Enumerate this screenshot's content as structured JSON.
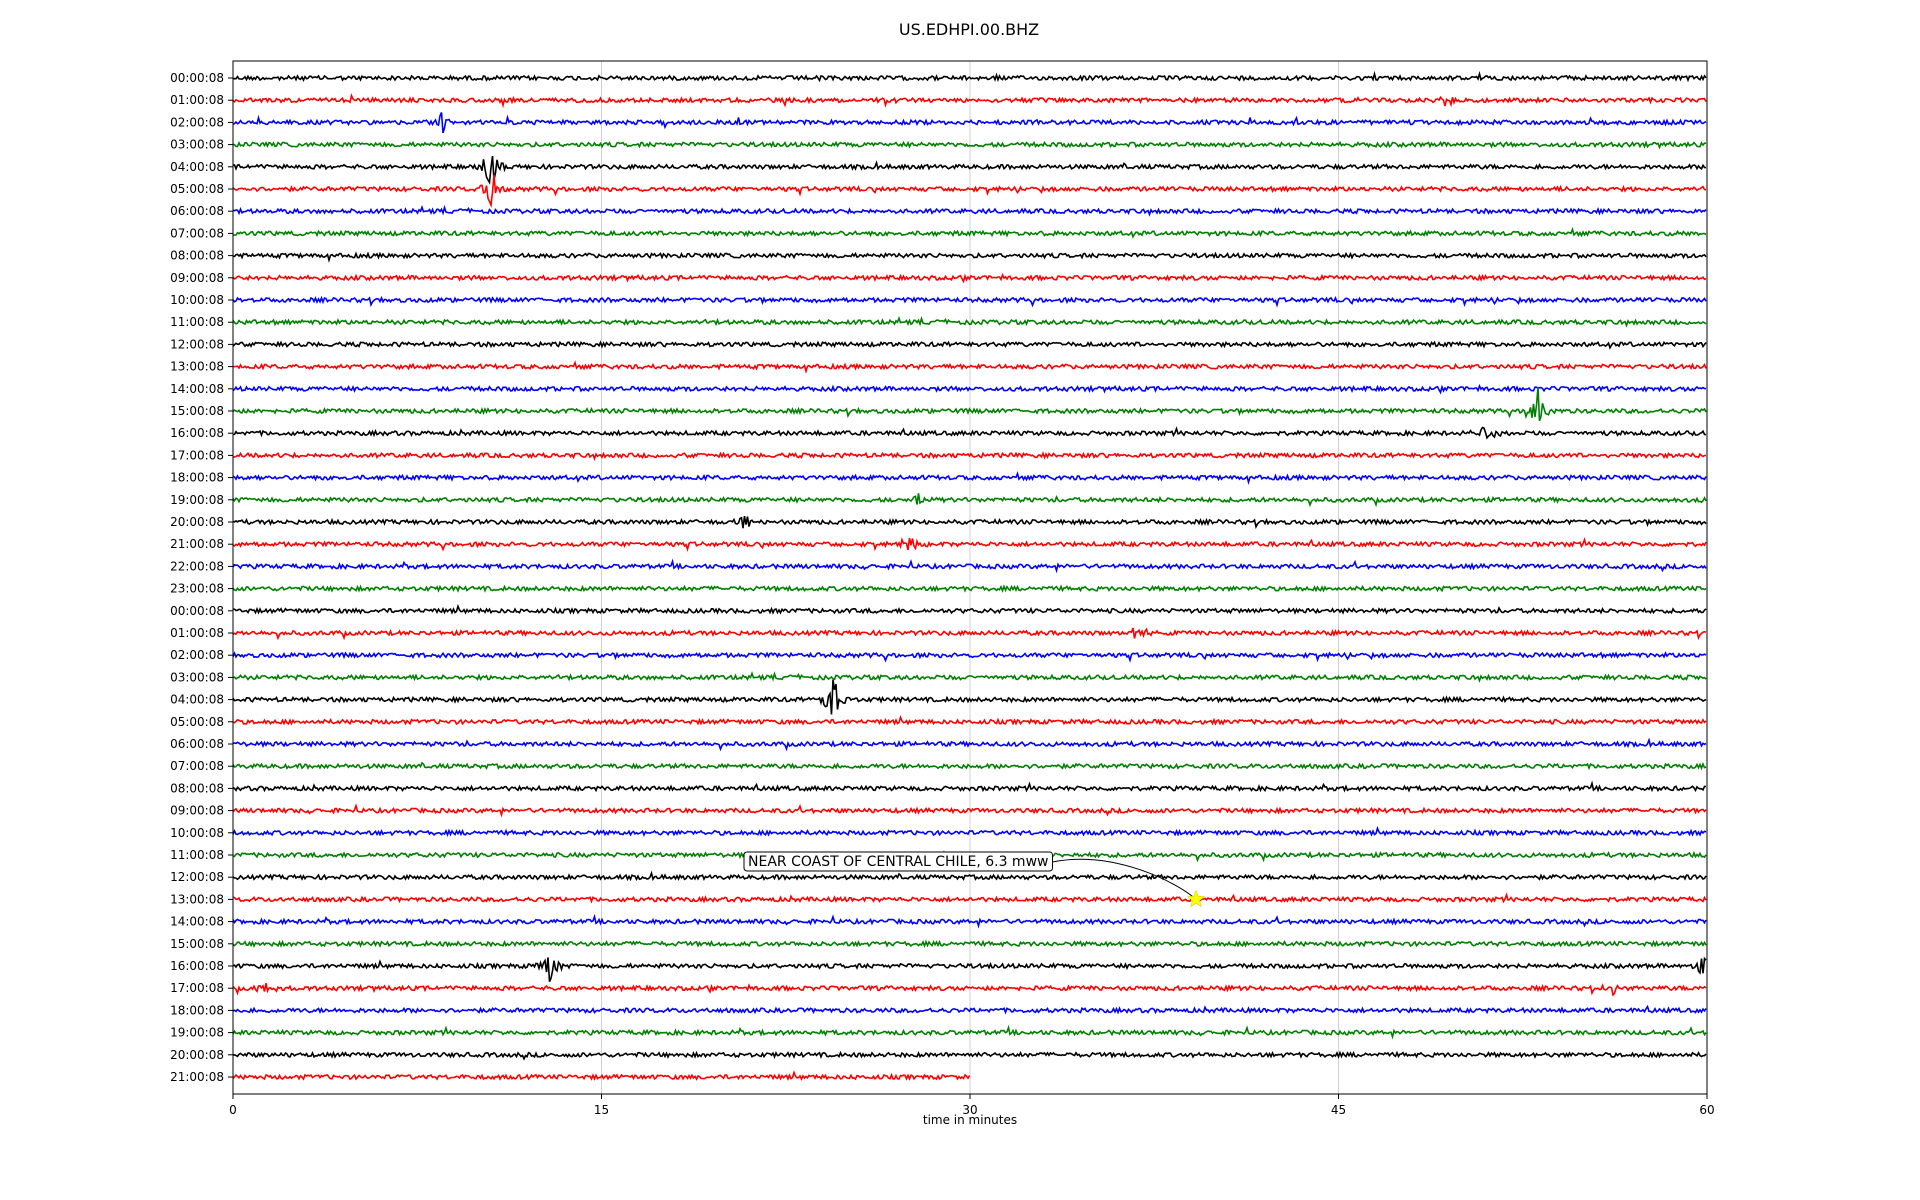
{
  "chart_data": {
    "type": "line",
    "title": "US.EDHPI.00.BHZ",
    "xlabel": "time in minutes",
    "ylabel": "",
    "xlim": [
      0,
      60
    ],
    "xticks": [
      0,
      15,
      30,
      45,
      60
    ],
    "grid": true,
    "line_colors": [
      "#000000",
      "#ff0000",
      "#0000ff",
      "#008000"
    ],
    "rows": [
      "00:00:08",
      "01:00:08",
      "02:00:08",
      "03:00:08",
      "04:00:08",
      "05:00:08",
      "06:00:08",
      "07:00:08",
      "08:00:08",
      "09:00:08",
      "10:00:08",
      "11:00:08",
      "12:00:08",
      "13:00:08",
      "14:00:08",
      "15:00:08",
      "16:00:08",
      "17:00:08",
      "18:00:08",
      "19:00:08",
      "20:00:08",
      "21:00:08",
      "22:00:08",
      "23:00:08",
      "00:00:08",
      "01:00:08",
      "02:00:08",
      "03:00:08",
      "04:00:08",
      "05:00:08",
      "06:00:08",
      "07:00:08",
      "08:00:08",
      "09:00:08",
      "10:00:08",
      "11:00:08",
      "12:00:08",
      "13:00:08",
      "14:00:08",
      "15:00:08",
      "16:00:08",
      "17:00:08",
      "18:00:08",
      "19:00:08",
      "20:00:08",
      "21:00:08"
    ],
    "last_row_end_minute": 30,
    "events": [
      {
        "row": 4,
        "minute": 10.5,
        "amp": 2.2
      },
      {
        "row": 5,
        "minute": 10.5,
        "amp": 2.0
      },
      {
        "row": 2,
        "minute": 8.5,
        "amp": 1.0
      },
      {
        "row": 15,
        "minute": 53.1,
        "amp": 2.2
      },
      {
        "row": 16,
        "minute": 51.0,
        "amp": 1.0
      },
      {
        "row": 28,
        "minute": 24.4,
        "amp": 2.4
      },
      {
        "row": 25,
        "minute": 36.8,
        "amp": 0.8
      },
      {
        "row": 21,
        "minute": 27.6,
        "amp": 1.0
      },
      {
        "row": 40,
        "minute": 12.9,
        "amp": 1.8
      },
      {
        "row": 40,
        "minute": 59.8,
        "amp": 1.0
      },
      {
        "row": 41,
        "minute": 1.3,
        "amp": 0.9
      },
      {
        "row": 41,
        "minute": 56.1,
        "amp": 0.8
      },
      {
        "row": 19,
        "minute": 27.9,
        "amp": 0.7
      },
      {
        "row": 1,
        "minute": 49.5,
        "amp": 0.7
      },
      {
        "row": 20,
        "minute": 20.8,
        "amp": 0.8
      }
    ],
    "annotation": {
      "text": "NEAR COAST OF CENTRAL CHILE, 6.3 mww",
      "row": 37,
      "minute": 39.2,
      "marker": "star",
      "marker_color": "#ffff00"
    }
  }
}
